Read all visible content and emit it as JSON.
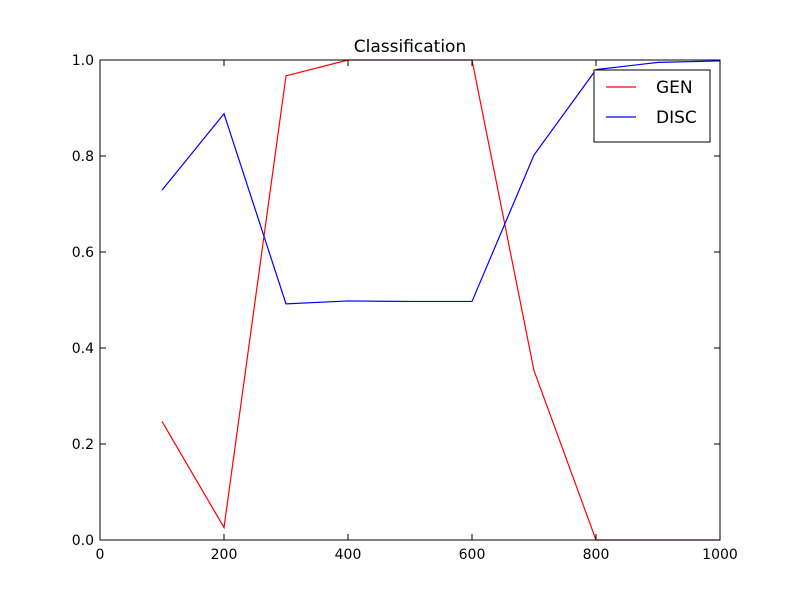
{
  "chart_data": {
    "type": "line",
    "title": "Classification",
    "xlabel": "",
    "ylabel": "",
    "xlim": [
      0,
      1000
    ],
    "ylim": [
      0.0,
      1.0
    ],
    "x_ticks": [
      0,
      200,
      400,
      600,
      800,
      1000
    ],
    "x_tick_labels": [
      "0",
      "200",
      "400",
      "600",
      "800",
      "1000"
    ],
    "y_ticks": [
      0.0,
      0.2,
      0.4,
      0.6,
      0.8,
      1.0
    ],
    "y_tick_labels": [
      "0.0",
      "0.2",
      "0.4",
      "0.6",
      "0.8",
      "1.0"
    ],
    "grid": false,
    "legend_position": "top-right",
    "x": [
      100,
      200,
      300,
      400,
      500,
      600,
      700,
      800,
      900,
      1000
    ],
    "series": [
      {
        "name": "GEN",
        "color": "#ff0000",
        "values": [
          0.247,
          0.026,
          0.967,
          1.0,
          1.0,
          1.0,
          0.353,
          0.0,
          0.0,
          0.0
        ]
      },
      {
        "name": "DISC",
        "color": "#0000ff",
        "values": [
          0.729,
          0.888,
          0.492,
          0.498,
          0.497,
          0.497,
          0.802,
          0.98,
          0.995,
          0.998
        ]
      }
    ]
  }
}
